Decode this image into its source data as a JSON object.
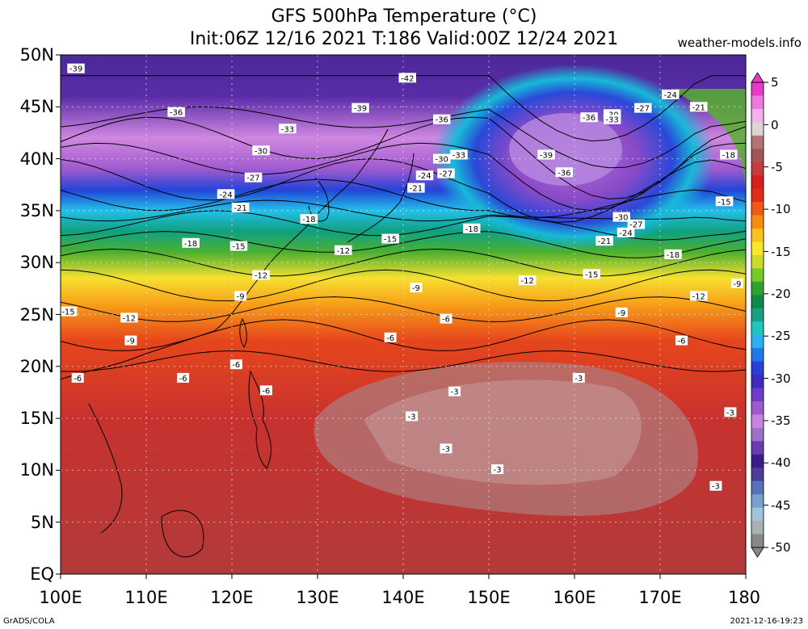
{
  "header": {
    "title_line1": "GFS 500hPa Temperature (°C)",
    "title_line2": "Init:06Z 12/16 2021 T:186 Valid:00Z 12/24 2021",
    "site": "weather-models.info"
  },
  "footer": {
    "credit": "GrADS/COLA",
    "timestamp": "2021-12-16-19:23"
  },
  "map": {
    "projection": "lat-lon",
    "lon_range": [
      100,
      180
    ],
    "lat_range": [
      0,
      50
    ],
    "lat_labels": [
      "EQ",
      "5N",
      "10N",
      "15N",
      "20N",
      "25N",
      "30N",
      "35N",
      "40N",
      "45N",
      "50N"
    ],
    "lon_labels": [
      "100E",
      "110E",
      "120E",
      "130E",
      "140E",
      "150E",
      "160E",
      "170E",
      "180"
    ],
    "contour_labels": [
      {
        "text": "-39",
        "lon": 101.8,
        "lat": 48.7
      },
      {
        "text": "-42",
        "lon": 140.5,
        "lat": 47.8
      },
      {
        "text": "-36",
        "lon": 113.5,
        "lat": 44.5
      },
      {
        "text": "-39",
        "lon": 135.0,
        "lat": 44.9
      },
      {
        "text": "-33",
        "lon": 126.5,
        "lat": 42.9
      },
      {
        "text": "-36",
        "lon": 144.5,
        "lat": 43.8
      },
      {
        "text": "-36",
        "lon": 161.7,
        "lat": 44.0
      },
      {
        "text": "-30",
        "lon": 164.4,
        "lat": 44.3
      },
      {
        "text": "-33",
        "lon": 164.4,
        "lat": 43.8
      },
      {
        "text": "-27",
        "lon": 168.0,
        "lat": 44.9
      },
      {
        "text": "-24",
        "lon": 171.2,
        "lat": 46.2
      },
      {
        "text": "-21",
        "lon": 174.5,
        "lat": 45.0
      },
      {
        "text": "-30",
        "lon": 123.4,
        "lat": 40.8
      },
      {
        "text": "-33",
        "lon": 146.5,
        "lat": 40.4
      },
      {
        "text": "-30",
        "lon": 144.5,
        "lat": 40.0
      },
      {
        "text": "-39",
        "lon": 156.7,
        "lat": 40.4
      },
      {
        "text": "-27",
        "lon": 122.5,
        "lat": 38.2
      },
      {
        "text": "-24",
        "lon": 142.5,
        "lat": 38.4
      },
      {
        "text": "-27",
        "lon": 145.0,
        "lat": 38.6
      },
      {
        "text": "-21",
        "lon": 141.5,
        "lat": 37.2
      },
      {
        "text": "-36",
        "lon": 158.8,
        "lat": 38.7
      },
      {
        "text": "-18",
        "lon": 178.0,
        "lat": 40.4
      },
      {
        "text": "-24",
        "lon": 119.3,
        "lat": 36.6
      },
      {
        "text": "-21",
        "lon": 121.0,
        "lat": 35.3
      },
      {
        "text": "-15",
        "lon": 177.5,
        "lat": 35.9
      },
      {
        "text": "-18",
        "lon": 129.0,
        "lat": 34.2
      },
      {
        "text": "-30",
        "lon": 165.5,
        "lat": 34.4
      },
      {
        "text": "-27",
        "lon": 167.2,
        "lat": 33.7
      },
      {
        "text": "-18",
        "lon": 148.0,
        "lat": 33.3
      },
      {
        "text": "-24",
        "lon": 166.0,
        "lat": 32.9
      },
      {
        "text": "-18",
        "lon": 115.2,
        "lat": 31.9
      },
      {
        "text": "-15",
        "lon": 120.8,
        "lat": 31.6
      },
      {
        "text": "-15",
        "lon": 138.5,
        "lat": 32.3
      },
      {
        "text": "-21",
        "lon": 163.5,
        "lat": 32.1
      },
      {
        "text": "-12",
        "lon": 133.0,
        "lat": 31.2
      },
      {
        "text": "-18",
        "lon": 171.5,
        "lat": 30.8
      },
      {
        "text": "-12",
        "lon": 123.4,
        "lat": 28.8
      },
      {
        "text": "-12",
        "lon": 154.5,
        "lat": 28.3
      },
      {
        "text": "-15",
        "lon": 162.0,
        "lat": 28.9
      },
      {
        "text": "-9",
        "lon": 179.0,
        "lat": 28.0
      },
      {
        "text": "-9",
        "lon": 141.5,
        "lat": 27.6
      },
      {
        "text": "-9",
        "lon": 121.0,
        "lat": 26.8
      },
      {
        "text": "-12",
        "lon": 174.5,
        "lat": 26.8
      },
      {
        "text": "-15",
        "lon": 100.9,
        "lat": 25.3
      },
      {
        "text": "-12",
        "lon": 108.0,
        "lat": 24.7
      },
      {
        "text": "-6",
        "lon": 145.0,
        "lat": 24.6
      },
      {
        "text": "-9",
        "lon": 165.5,
        "lat": 25.2
      },
      {
        "text": "-9",
        "lon": 108.2,
        "lat": 22.5
      },
      {
        "text": "-6",
        "lon": 138.5,
        "lat": 22.8
      },
      {
        "text": "-6",
        "lon": 172.5,
        "lat": 22.5
      },
      {
        "text": "-6",
        "lon": 120.5,
        "lat": 20.2
      },
      {
        "text": "-6",
        "lon": 102.0,
        "lat": 18.9
      },
      {
        "text": "-6",
        "lon": 114.3,
        "lat": 18.9
      },
      {
        "text": "-3",
        "lon": 160.5,
        "lat": 18.9
      },
      {
        "text": "-6",
        "lon": 124.0,
        "lat": 17.7
      },
      {
        "text": "-3",
        "lon": 146.0,
        "lat": 17.6
      },
      {
        "text": "-3",
        "lon": 178.2,
        "lat": 15.6
      },
      {
        "text": "-3",
        "lon": 141.0,
        "lat": 15.2
      },
      {
        "text": "-3",
        "lon": 145.0,
        "lat": 12.1
      },
      {
        "text": "-3",
        "lon": 151.0,
        "lat": 10.1
      },
      {
        "text": "-3",
        "lon": 176.5,
        "lat": 8.5
      }
    ]
  },
  "colorbar": {
    "labels": [
      "5",
      "0",
      "-5",
      "-10",
      "-15",
      "-20",
      "-25",
      "-30",
      "-35",
      "-40",
      "-45",
      "-50"
    ],
    "values": [
      5,
      0,
      -5,
      -10,
      -15,
      -20,
      -25,
      -30,
      -35,
      -40,
      -45,
      -50
    ],
    "colors": [
      "#e838c8",
      "#ee78dc",
      "#f5b0ee",
      "#dad6d6",
      "#b47476",
      "#a45456",
      "#c63c3e",
      "#d41e20",
      "#e02c18",
      "#f05818",
      "#f88c10",
      "#fcc020",
      "#f8e828",
      "#c8dc28",
      "#78c828",
      "#30a030",
      "#108848",
      "#18a080",
      "#20c4c0",
      "#28b0f0",
      "#2078e8",
      "#2840d8",
      "#3c2cc0",
      "#6e3cc8",
      "#a058d0",
      "#c884e0",
      "#a070c8",
      "#6a3cb0",
      "#3c1c8c",
      "#4c3c9c",
      "#5870b8",
      "#78a0cc",
      "#a0c4dc",
      "#a8b0b4",
      "#888888"
    ]
  }
}
